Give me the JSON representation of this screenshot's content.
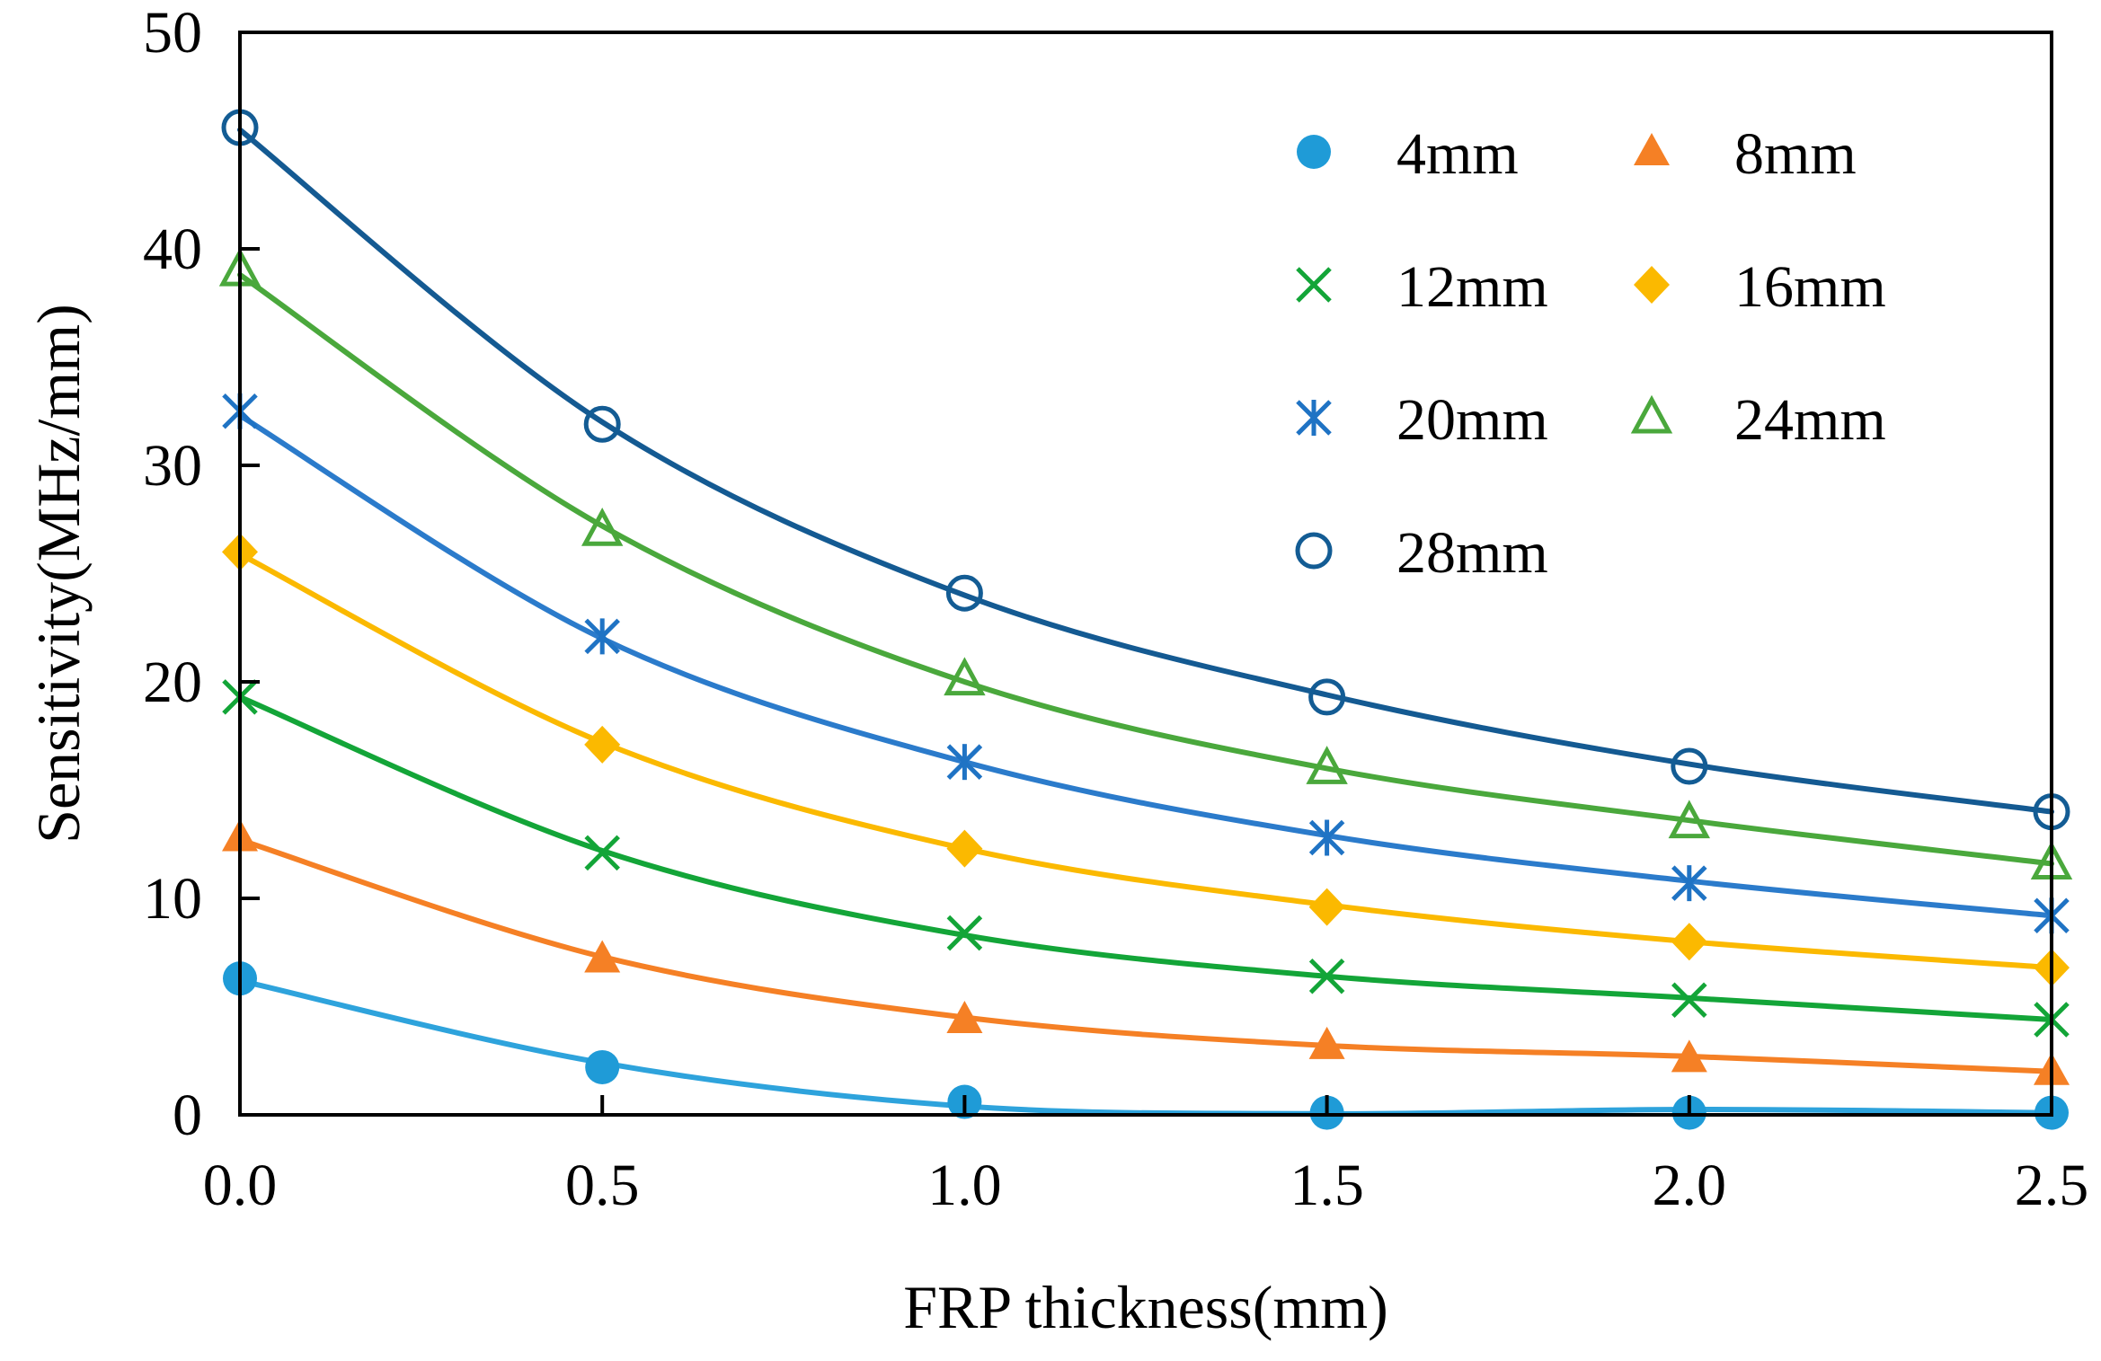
{
  "chart_data": {
    "type": "scatter",
    "title": "",
    "xlabel": "FRP thickness(mm)",
    "ylabel": "Sensitivity(MHz/mm)",
    "xlim": [
      0,
      2.5
    ],
    "ylim": [
      0,
      50
    ],
    "xticks": [
      0,
      0.5,
      1.0,
      1.5,
      2.0,
      2.5
    ],
    "xtick_labels": [
      "0.0",
      "0.5",
      "1.0",
      "1.5",
      "2.0",
      "2.5"
    ],
    "yticks": [
      0,
      10,
      20,
      30,
      40,
      50
    ],
    "ytick_labels": [
      "0",
      "10",
      "20",
      "30",
      "40",
      "50"
    ],
    "grid": false,
    "legend_position": "top-right",
    "x": [
      0,
      0.5,
      1.0,
      1.5,
      2.0,
      2.5
    ],
    "series": [
      {
        "name": "4mm",
        "marker": "circle-filled",
        "color": "#1f9bd7",
        "line_color": "#2ea3dc",
        "values": [
          6.3,
          2.2,
          0.6,
          0.1,
          0.1,
          0.1
        ],
        "fit": [
          6.2,
          2.4,
          0.4,
          0.05,
          0.25,
          0.1
        ]
      },
      {
        "name": "8mm",
        "marker": "triangle-filled",
        "color": "#f58025",
        "line_color": "#f58025",
        "values": [
          12.8,
          7.2,
          4.4,
          3.2,
          2.6,
          2.0
        ],
        "fit": [
          12.7,
          7.3,
          4.5,
          3.2,
          2.7,
          2.0
        ]
      },
      {
        "name": "12mm",
        "marker": "x",
        "color": "#13a538",
        "line_color": "#13a538",
        "values": [
          19.3,
          12.1,
          8.4,
          6.4,
          5.3,
          4.4
        ],
        "fit": [
          19.3,
          12.2,
          8.3,
          6.4,
          5.4,
          4.4
        ]
      },
      {
        "name": "16mm",
        "marker": "diamond-filled",
        "color": "#fbb900",
        "line_color": "#fbb900",
        "values": [
          26.0,
          17.1,
          12.3,
          9.6,
          8.0,
          6.8
        ],
        "fit": [
          25.9,
          17.2,
          12.3,
          9.7,
          8.0,
          6.8
        ]
      },
      {
        "name": "20mm",
        "marker": "asterisk",
        "color": "#1f73c4",
        "line_color": "#2b7bcb",
        "values": [
          32.5,
          22.1,
          16.3,
          12.8,
          10.7,
          9.2
        ],
        "fit": [
          32.3,
          22.0,
          16.3,
          12.9,
          10.8,
          9.2
        ]
      },
      {
        "name": "24mm",
        "marker": "triangle-open",
        "color": "#4aa83c",
        "line_color": "#4aa83c",
        "values": [
          39.0,
          27.0,
          20.1,
          16.0,
          13.5,
          11.6
        ],
        "fit": [
          38.8,
          27.2,
          20.0,
          16.0,
          13.6,
          11.6
        ]
      },
      {
        "name": "28mm",
        "marker": "circle-open",
        "color": "#135c94",
        "line_color": "#145a92",
        "values": [
          45.6,
          31.9,
          24.1,
          19.3,
          16.1,
          14.0
        ],
        "fit": [
          45.5,
          32.0,
          24.0,
          19.4,
          16.2,
          14.0
        ]
      }
    ]
  }
}
